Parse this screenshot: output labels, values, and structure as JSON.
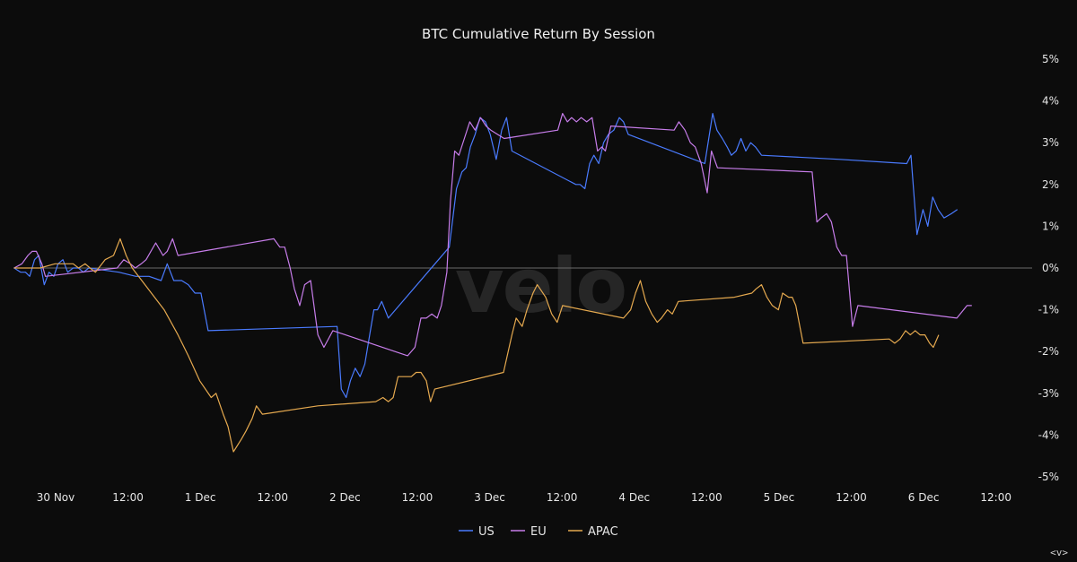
{
  "corner_label": "<v>",
  "watermark": "velo",
  "chart_data": {
    "type": "line",
    "title": "BTC Cumulative Return By Session",
    "xlabel": "",
    "ylabel": "",
    "x_unit": "hours since 30 Nov 00:00 UTC",
    "xlim": [
      -7,
      162
    ],
    "ylim": [
      -5,
      5
    ],
    "y_ticks": [
      5,
      4,
      3,
      2,
      1,
      0,
      -1,
      -2,
      -3,
      -4,
      -5
    ],
    "y_tick_labels": [
      "5%",
      "4%",
      "3%",
      "2%",
      "1%",
      "0%",
      "-1%",
      "-2%",
      "-3%",
      "-4%",
      "-5%"
    ],
    "x_ticks": [
      0,
      12,
      24,
      36,
      48,
      60,
      72,
      84,
      96,
      108,
      120,
      132,
      144,
      156
    ],
    "x_tick_labels": [
      "30 Nov",
      "12:00",
      "1 Dec",
      "12:00",
      "2 Dec",
      "12:00",
      "3 Dec",
      "12:00",
      "4 Dec",
      "12:00",
      "5 Dec",
      "12:00",
      "6 Dec",
      "12:00"
    ],
    "zero_line": true,
    "grid": false,
    "y_axis_position": "right",
    "legend_position": "bottom-center",
    "series": [
      {
        "name": "US",
        "color": "#4a7bff",
        "points": [
          [
            -6.9,
            0
          ],
          [
            -5.8,
            -0.1
          ],
          [
            -5.0,
            -0.1
          ],
          [
            -4.3,
            -0.2
          ],
          [
            -3.5,
            0.2
          ],
          [
            -2.8,
            0.3
          ],
          [
            -1.9,
            -0.4
          ],
          [
            -1.1,
            -0.1
          ],
          [
            -0.3,
            -0.2
          ],
          [
            0.4,
            0.1
          ],
          [
            1.2,
            0.2
          ],
          [
            2.0,
            -0.1
          ],
          [
            2.9,
            0.0
          ],
          [
            3.8,
            0.0
          ],
          [
            4.6,
            -0.1
          ],
          [
            5.5,
            0.0
          ],
          [
            10.5,
            -0.1
          ],
          [
            13.3,
            -0.2
          ],
          [
            15.5,
            -0.2
          ],
          [
            17.5,
            -0.3
          ],
          [
            18.5,
            0.1
          ],
          [
            19.6,
            -0.3
          ],
          [
            20.9,
            -0.3
          ],
          [
            22.0,
            -0.4
          ],
          [
            23.1,
            -0.6
          ],
          [
            24.1,
            -0.6
          ],
          [
            25.3,
            -1.5
          ],
          [
            46.7,
            -1.4
          ],
          [
            47.4,
            -2.9
          ],
          [
            48.2,
            -3.1
          ],
          [
            48.9,
            -2.7
          ],
          [
            49.7,
            -2.4
          ],
          [
            50.5,
            -2.6
          ],
          [
            51.3,
            -2.3
          ],
          [
            52.1,
            -1.6
          ],
          [
            52.8,
            -1.0
          ],
          [
            53.4,
            -1.0
          ],
          [
            54.1,
            -0.8
          ],
          [
            55.2,
            -1.2
          ],
          [
            65.3,
            0.5
          ],
          [
            66.5,
            1.9
          ],
          [
            67.4,
            2.3
          ],
          [
            68.1,
            2.4
          ],
          [
            68.8,
            2.9
          ],
          [
            69.6,
            3.2
          ],
          [
            70.4,
            3.6
          ],
          [
            71.3,
            3.5
          ],
          [
            72.1,
            3.2
          ],
          [
            73.1,
            2.6
          ],
          [
            74.0,
            3.3
          ],
          [
            74.8,
            3.6
          ],
          [
            75.7,
            2.8
          ],
          [
            86.3,
            2.0
          ],
          [
            87.0,
            2.0
          ],
          [
            87.8,
            1.9
          ],
          [
            88.6,
            2.5
          ],
          [
            89.3,
            2.7
          ],
          [
            90.1,
            2.5
          ],
          [
            90.9,
            3.0
          ],
          [
            91.7,
            3.2
          ],
          [
            92.6,
            3.3
          ],
          [
            93.5,
            3.6
          ],
          [
            94.2,
            3.5
          ],
          [
            95.0,
            3.2
          ],
          [
            107.7,
            2.5
          ],
          [
            109.0,
            3.7
          ],
          [
            109.7,
            3.3
          ],
          [
            110.6,
            3.1
          ],
          [
            111.4,
            2.9
          ],
          [
            112.1,
            2.7
          ],
          [
            112.9,
            2.8
          ],
          [
            113.7,
            3.1
          ],
          [
            114.5,
            2.8
          ],
          [
            115.3,
            3.0
          ],
          [
            116.1,
            2.9
          ],
          [
            117.1,
            2.7
          ],
          [
            130.1,
            2.6
          ],
          [
            141.2,
            2.5
          ],
          [
            141.9,
            2.7
          ],
          [
            142.9,
            0.8
          ],
          [
            143.9,
            1.4
          ],
          [
            144.7,
            1.0
          ],
          [
            145.5,
            1.7
          ],
          [
            146.4,
            1.4
          ],
          [
            147.4,
            1.2
          ],
          [
            148.6,
            1.3
          ],
          [
            149.6,
            1.4
          ]
        ]
      },
      {
        "name": "EU",
        "color": "#c77dea",
        "points": [
          [
            -6.9,
            0
          ],
          [
            -5.6,
            0.1
          ],
          [
            -4.6,
            0.3
          ],
          [
            -3.9,
            0.4
          ],
          [
            -3.2,
            0.4
          ],
          [
            -2.3,
            0.1
          ],
          [
            -1.7,
            -0.2
          ],
          [
            10.2,
            0.0
          ],
          [
            11.3,
            0.2
          ],
          [
            12.4,
            0.1
          ],
          [
            13.2,
            0.0
          ],
          [
            14.2,
            0.1
          ],
          [
            15.0,
            0.2
          ],
          [
            16.6,
            0.6
          ],
          [
            17.8,
            0.3
          ],
          [
            18.5,
            0.4
          ],
          [
            19.4,
            0.7
          ],
          [
            20.3,
            0.3
          ],
          [
            36.2,
            0.7
          ],
          [
            37.2,
            0.5
          ],
          [
            38.0,
            0.5
          ],
          [
            38.9,
            0.0
          ],
          [
            39.6,
            -0.5
          ],
          [
            40.5,
            -0.9
          ],
          [
            41.3,
            -0.4
          ],
          [
            42.3,
            -0.3
          ],
          [
            43.5,
            -1.6
          ],
          [
            44.5,
            -1.9
          ],
          [
            46.0,
            -1.5
          ],
          [
            58.4,
            -2.1
          ],
          [
            59.6,
            -1.9
          ],
          [
            60.6,
            -1.2
          ],
          [
            61.5,
            -1.2
          ],
          [
            62.4,
            -1.1
          ],
          [
            63.3,
            -1.2
          ],
          [
            64.0,
            -0.9
          ],
          [
            64.9,
            -0.1
          ],
          [
            65.5,
            1.6
          ],
          [
            66.2,
            2.8
          ],
          [
            66.9,
            2.7
          ],
          [
            67.8,
            3.1
          ],
          [
            68.7,
            3.5
          ],
          [
            69.6,
            3.3
          ],
          [
            70.5,
            3.6
          ],
          [
            71.4,
            3.4
          ],
          [
            72.2,
            3.3
          ],
          [
            74.4,
            3.1
          ],
          [
            83.3,
            3.3
          ],
          [
            84.1,
            3.7
          ],
          [
            84.9,
            3.5
          ],
          [
            85.6,
            3.6
          ],
          [
            86.4,
            3.5
          ],
          [
            87.2,
            3.6
          ],
          [
            88.1,
            3.5
          ],
          [
            89.0,
            3.6
          ],
          [
            89.9,
            2.8
          ],
          [
            90.6,
            2.9
          ],
          [
            91.2,
            2.8
          ],
          [
            92.1,
            3.4
          ],
          [
            102.6,
            3.3
          ],
          [
            103.4,
            3.5
          ],
          [
            104.4,
            3.3
          ],
          [
            105.3,
            3.0
          ],
          [
            106.1,
            2.9
          ],
          [
            107.1,
            2.5
          ],
          [
            108.1,
            1.8
          ],
          [
            108.8,
            2.8
          ],
          [
            109.8,
            2.4
          ],
          [
            125.5,
            2.3
          ],
          [
            126.3,
            1.1
          ],
          [
            127.0,
            1.2
          ],
          [
            127.9,
            1.3
          ],
          [
            128.7,
            1.1
          ],
          [
            129.6,
            0.5
          ],
          [
            130.4,
            0.3
          ],
          [
            131.2,
            0.3
          ],
          [
            132.2,
            -1.4
          ],
          [
            133.1,
            -0.9
          ],
          [
            149.5,
            -1.2
          ],
          [
            151.2,
            -0.9
          ],
          [
            152.0,
            -0.9
          ]
        ]
      },
      {
        "name": "APAC",
        "color": "#e5a94f",
        "points": [
          [
            -6.9,
            0
          ],
          [
            -3.6,
            0.0
          ],
          [
            -2.6,
            0.0
          ],
          [
            -0.1,
            0.1
          ],
          [
            1.1,
            0.1
          ],
          [
            2.9,
            0.1
          ],
          [
            3.8,
            0.0
          ],
          [
            4.9,
            0.1
          ],
          [
            5.7,
            0.0
          ],
          [
            6.6,
            -0.1
          ],
          [
            8.2,
            0.2
          ],
          [
            9.6,
            0.3
          ],
          [
            10.7,
            0.7
          ],
          [
            11.7,
            0.3
          ],
          [
            12.7,
            0.0
          ],
          [
            18.0,
            -1.0
          ],
          [
            20.3,
            -1.6
          ],
          [
            22.0,
            -2.1
          ],
          [
            23.9,
            -2.7
          ],
          [
            25.8,
            -3.1
          ],
          [
            26.6,
            -3.0
          ],
          [
            27.8,
            -3.5
          ],
          [
            28.6,
            -3.8
          ],
          [
            29.5,
            -4.4
          ],
          [
            30.8,
            -4.1
          ],
          [
            31.6,
            -3.9
          ],
          [
            32.6,
            -3.6
          ],
          [
            33.3,
            -3.3
          ],
          [
            34.3,
            -3.5
          ],
          [
            43.5,
            -3.3
          ],
          [
            53.1,
            -3.2
          ],
          [
            54.3,
            -3.1
          ],
          [
            55.2,
            -3.2
          ],
          [
            56.0,
            -3.1
          ],
          [
            56.8,
            -2.6
          ],
          [
            57.5,
            -2.6
          ],
          [
            58.2,
            -2.6
          ],
          [
            59.0,
            -2.6
          ],
          [
            59.8,
            -2.5
          ],
          [
            60.6,
            -2.5
          ],
          [
            61.5,
            -2.7
          ],
          [
            62.2,
            -3.2
          ],
          [
            62.9,
            -2.9
          ],
          [
            74.3,
            -2.5
          ],
          [
            75.7,
            -1.6
          ],
          [
            76.4,
            -1.2
          ],
          [
            77.4,
            -1.4
          ],
          [
            78.2,
            -1.0
          ],
          [
            79.2,
            -0.6
          ],
          [
            79.9,
            -0.4
          ],
          [
            81.3,
            -0.7
          ],
          [
            82.3,
            -1.1
          ],
          [
            83.2,
            -1.3
          ],
          [
            84.1,
            -0.9
          ],
          [
            94.2,
            -1.2
          ],
          [
            95.4,
            -1.0
          ],
          [
            96.2,
            -0.6
          ],
          [
            97.0,
            -0.3
          ],
          [
            97.9,
            -0.8
          ],
          [
            98.9,
            -1.1
          ],
          [
            99.8,
            -1.3
          ],
          [
            100.5,
            -1.2
          ],
          [
            101.5,
            -1.0
          ],
          [
            102.3,
            -1.1
          ],
          [
            103.3,
            -0.8
          ],
          [
            112.6,
            -0.7
          ],
          [
            115.5,
            -0.6
          ],
          [
            116.2,
            -0.5
          ],
          [
            117.1,
            -0.4
          ],
          [
            118.0,
            -0.7
          ],
          [
            118.9,
            -0.9
          ],
          [
            119.9,
            -1.0
          ],
          [
            120.6,
            -0.6
          ],
          [
            121.6,
            -0.7
          ],
          [
            122.2,
            -0.7
          ],
          [
            122.8,
            -0.9
          ],
          [
            124.0,
            -1.8
          ],
          [
            138.3,
            -1.7
          ],
          [
            139.2,
            -1.8
          ],
          [
            140.1,
            -1.7
          ],
          [
            141.0,
            -1.5
          ],
          [
            141.8,
            -1.6
          ],
          [
            142.6,
            -1.5
          ],
          [
            143.4,
            -1.6
          ],
          [
            144.2,
            -1.6
          ],
          [
            145.0,
            -1.8
          ],
          [
            145.6,
            -1.9
          ],
          [
            146.5,
            -1.6
          ]
        ]
      }
    ]
  }
}
